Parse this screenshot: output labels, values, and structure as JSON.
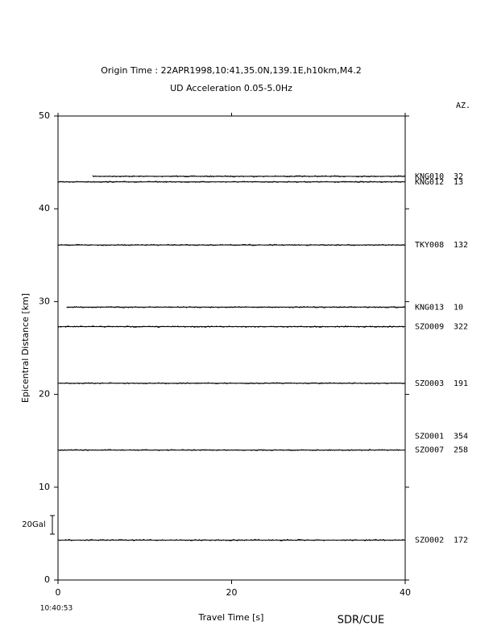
{
  "chart_data": {
    "type": "record-section",
    "title": "Origin Time : 22APR1998,10:41,35.0N,139.1E,h10km,M4.2",
    "subtitle": "UD Acceleration 0.05-5.0Hz",
    "azimuth_header": "AZ.",
    "x_label": "Travel Time [s]",
    "y_label": "Epicentral Distance [km]",
    "start_time": "10:40:53",
    "credit": "SDR/CUE",
    "scale_label": "20Gal",
    "xlim": [
      0,
      40
    ],
    "xticks": [
      0,
      20,
      40
    ],
    "ylim": [
      0,
      50
    ],
    "yticks": [
      0,
      10,
      20,
      30,
      40,
      50
    ],
    "color": "#000000",
    "stations": [
      {
        "name": "KNG010",
        "azimuth": "32",
        "distance": 43.5,
        "start": 4
      },
      {
        "name": "KNG012",
        "azimuth": "13",
        "distance": 42.9,
        "start": 0
      },
      {
        "name": "TKY008",
        "azimuth": "132",
        "distance": 36.1,
        "start": 0
      },
      {
        "name": "KNG013",
        "azimuth": "10",
        "distance": 29.4,
        "start": 1
      },
      {
        "name": "SZO009",
        "azimuth": "322",
        "distance": 27.3,
        "start": 0
      },
      {
        "name": "SZO003",
        "azimuth": "191",
        "distance": 21.2,
        "start": 0
      },
      {
        "name": "SZO001",
        "azimuth": "354",
        "distance": 15.5,
        "start": null
      },
      {
        "name": "SZO007",
        "azimuth": "258",
        "distance": 14.0,
        "start": 0
      },
      {
        "name": "SZO002",
        "azimuth": "172",
        "distance": 4.3,
        "start": 0
      }
    ]
  }
}
